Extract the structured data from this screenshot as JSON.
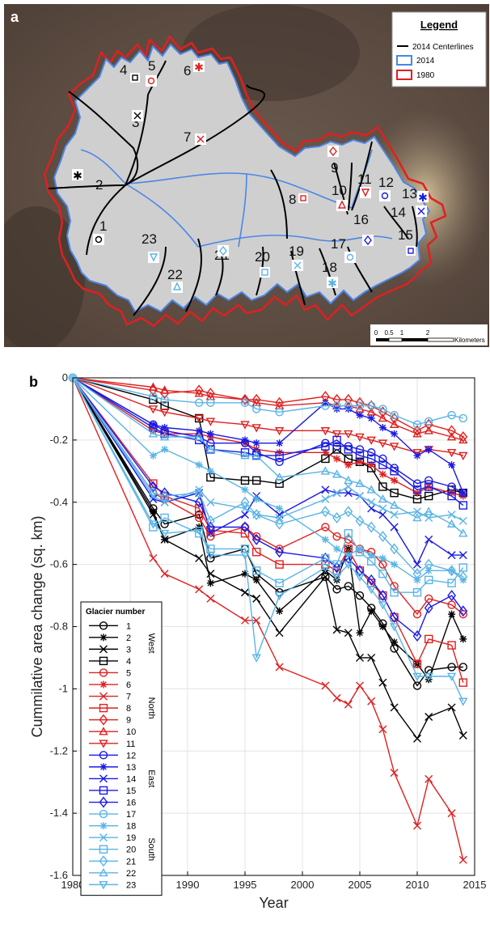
{
  "panel_a": {
    "label": "a",
    "legend": {
      "title": "Legend",
      "items": [
        {
          "label": "2014 Centerlines",
          "color": "#000000"
        },
        {
          "label": "2014",
          "color": "#4a86e8"
        },
        {
          "label": "1980",
          "color": "#e02020"
        }
      ]
    },
    "scale": {
      "ticks": [
        "0",
        "0.5",
        "1",
        "2"
      ],
      "unit": "Kilometers"
    },
    "glacier_labels": [
      "1",
      "2",
      "3",
      "4",
      "5",
      "6",
      "7",
      "8",
      "9",
      "10",
      "11",
      "12",
      "13",
      "14",
      "15",
      "16",
      "17",
      "18",
      "19",
      "20",
      "21",
      "22",
      "23"
    ]
  },
  "chart_data": {
    "type": "line",
    "panel_label": "b",
    "xlabel": "Year",
    "ylabel": "Cummilative area change (sq. km)",
    "xlim": [
      1980,
      2015
    ],
    "ylim": [
      -1.6,
      0
    ],
    "xticks": [
      1980,
      1985,
      1990,
      1995,
      2000,
      2005,
      2010,
      2015
    ],
    "yticks": [
      0,
      -0.2,
      -0.4,
      -0.6,
      -0.8,
      -1,
      -1.2,
      -1.4,
      -1.6
    ],
    "grid": true,
    "legend": {
      "title": "Glacier number",
      "placement": "bottom-left",
      "group_labels": [
        {
          "label": "West",
          "start": 1,
          "end": 4
        },
        {
          "label": "North",
          "start": 5,
          "end": 11
        },
        {
          "label": "East",
          "start": 12,
          "end": 16
        },
        {
          "label": "South",
          "start": 17,
          "end": 23
        }
      ]
    },
    "x": [
      1980,
      1987,
      1988,
      1991,
      1992,
      1995,
      1996,
      1998,
      2002,
      2003,
      2004,
      2005,
      2006,
      2007,
      2008,
      2010,
      2011,
      2013,
      2014
    ],
    "series": [
      {
        "name": "1",
        "color": "#000000",
        "marker": "circle",
        "values": [
          0,
          -0.42,
          -0.47,
          -0.44,
          -0.58,
          -0.55,
          -0.63,
          -0.69,
          -0.64,
          -0.68,
          -0.67,
          -0.7,
          -0.74,
          -0.79,
          -0.87,
          -0.99,
          -0.94,
          -0.93,
          -0.93
        ]
      },
      {
        "name": "2",
        "color": "#000000",
        "marker": "asterisk",
        "values": [
          0,
          -0.43,
          -0.52,
          -0.48,
          -0.66,
          -0.63,
          -0.65,
          -0.75,
          -0.62,
          -0.65,
          -0.55,
          -0.82,
          -0.75,
          -0.8,
          -0.85,
          -0.92,
          -0.97,
          -0.76,
          -0.84
        ]
      },
      {
        "name": "3",
        "color": "#000000",
        "marker": "x",
        "values": [
          0,
          -0.44,
          -0.52,
          -0.58,
          -0.63,
          -0.69,
          -0.71,
          -0.82,
          -0.64,
          -0.81,
          -0.82,
          -0.9,
          -0.9,
          -0.98,
          -1.06,
          -1.16,
          -1.09,
          -1.06,
          -1.15
        ]
      },
      {
        "name": "4",
        "color": "#000000",
        "marker": "square",
        "values": [
          0,
          -0.07,
          -0.09,
          -0.13,
          -0.32,
          -0.33,
          -0.33,
          -0.34,
          -0.26,
          -0.23,
          -0.26,
          -0.27,
          -0.29,
          -0.35,
          -0.37,
          -0.39,
          -0.38,
          -0.36,
          -0.37
        ]
      },
      {
        "name": "5",
        "color": "#e02020",
        "marker": "circle",
        "values": [
          0,
          -0.37,
          -0.39,
          -0.45,
          -0.51,
          -0.48,
          -0.51,
          -0.55,
          -0.48,
          -0.51,
          -0.52,
          -0.55,
          -0.56,
          -0.6,
          -0.67,
          -0.76,
          -0.71,
          -0.73,
          -0.76
        ]
      },
      {
        "name": "6",
        "color": "#e02020",
        "marker": "asterisk",
        "values": [
          0,
          -0.17,
          -0.18,
          -0.18,
          -0.19,
          -0.21,
          -0.23,
          -0.24,
          -0.24,
          -0.26,
          -0.28,
          -0.27,
          -0.28,
          -0.31,
          -0.33,
          -0.37,
          -0.35,
          -0.37,
          -0.38
        ]
      },
      {
        "name": "7",
        "color": "#e02020",
        "marker": "x",
        "values": [
          0,
          -0.58,
          -0.63,
          -0.68,
          -0.71,
          -0.78,
          -0.78,
          -0.93,
          -0.99,
          -1.03,
          -1.05,
          -0.99,
          -1.04,
          -1.13,
          -1.27,
          -1.44,
          -1.29,
          -1.4,
          -1.55
        ]
      },
      {
        "name": "8",
        "color": "#e02020",
        "marker": "square",
        "values": [
          0,
          -0.34,
          -0.38,
          -0.42,
          -0.49,
          -0.5,
          -0.56,
          -0.6,
          -0.6,
          -0.62,
          -0.55,
          -0.62,
          -0.66,
          -0.7,
          -0.77,
          -0.92,
          -0.84,
          -0.86,
          -0.98
        ]
      },
      {
        "name": "9",
        "color": "#e02020",
        "marker": "diamond",
        "values": [
          0,
          -0.04,
          -0.05,
          -0.04,
          -0.05,
          -0.07,
          -0.07,
          -0.08,
          -0.06,
          -0.07,
          -0.07,
          -0.08,
          -0.09,
          -0.11,
          -0.13,
          -0.17,
          -0.15,
          -0.17,
          -0.19
        ]
      },
      {
        "name": "10",
        "color": "#e02020",
        "marker": "triangle-up",
        "values": [
          0,
          -0.03,
          -0.04,
          -0.05,
          -0.06,
          -0.07,
          -0.08,
          -0.09,
          -0.08,
          -0.09,
          -0.09,
          -0.1,
          -0.11,
          -0.13,
          -0.15,
          -0.18,
          -0.17,
          -0.19,
          -0.2
        ]
      },
      {
        "name": "11",
        "color": "#e02020",
        "marker": "triangle-down",
        "values": [
          0,
          -0.1,
          -0.11,
          -0.13,
          -0.14,
          -0.15,
          -0.16,
          -0.17,
          -0.17,
          -0.18,
          -0.18,
          -0.19,
          -0.2,
          -0.21,
          -0.22,
          -0.24,
          -0.23,
          -0.24,
          -0.25
        ]
      },
      {
        "name": "12",
        "color": "#1a1ae6",
        "marker": "circle",
        "values": [
          0,
          -0.15,
          -0.17,
          -0.19,
          -0.21,
          -0.21,
          -0.24,
          -0.27,
          -0.21,
          -0.22,
          -0.22,
          -0.23,
          -0.24,
          -0.26,
          -0.29,
          -0.34,
          -0.33,
          -0.35,
          -0.37
        ]
      },
      {
        "name": "13",
        "color": "#1a1ae6",
        "marker": "asterisk",
        "values": [
          0,
          -0.15,
          -0.16,
          -0.17,
          -0.18,
          -0.2,
          -0.21,
          -0.21,
          -0.08,
          -0.1,
          -0.1,
          -0.12,
          -0.13,
          -0.16,
          -0.18,
          -0.25,
          -0.23,
          -0.28,
          -0.37
        ]
      },
      {
        "name": "14",
        "color": "#1a1ae6",
        "marker": "x",
        "values": [
          0,
          -0.39,
          -0.4,
          -0.37,
          -0.5,
          -0.44,
          -0.38,
          -0.44,
          -0.36,
          -0.37,
          -0.37,
          -0.38,
          -0.42,
          -0.44,
          -0.48,
          -0.6,
          -0.52,
          -0.57,
          -0.57
        ]
      },
      {
        "name": "15",
        "color": "#1a1ae6",
        "marker": "square",
        "values": [
          0,
          -0.16,
          -0.18,
          -0.2,
          -0.23,
          -0.24,
          -0.25,
          -0.25,
          -0.22,
          -0.2,
          -0.23,
          -0.25,
          -0.26,
          -0.28,
          -0.3,
          -0.36,
          -0.35,
          -0.38,
          -0.41
        ]
      },
      {
        "name": "16",
        "color": "#1a1ae6",
        "marker": "diamond",
        "values": [
          0,
          -0.35,
          -0.37,
          -0.4,
          -0.48,
          -0.48,
          -0.52,
          -0.56,
          -0.58,
          -0.61,
          -0.58,
          -0.62,
          -0.65,
          -0.7,
          -0.77,
          -0.83,
          -0.74,
          -0.7,
          -0.75
        ]
      },
      {
        "name": "17",
        "color": "#5ab4e6",
        "marker": "circle",
        "values": [
          0,
          -0.06,
          -0.07,
          -0.08,
          -0.08,
          -0.08,
          -0.1,
          -0.11,
          -0.09,
          -0.09,
          -0.09,
          -0.09,
          -0.09,
          -0.1,
          -0.12,
          -0.15,
          -0.14,
          -0.12,
          -0.13
        ]
      },
      {
        "name": "18",
        "color": "#5ab4e6",
        "marker": "asterisk",
        "values": [
          0,
          -0.25,
          -0.23,
          -0.28,
          -0.3,
          -0.36,
          -0.39,
          -0.42,
          -0.52,
          -0.55,
          -0.57,
          -0.55,
          -0.57,
          -0.58,
          -0.6,
          -0.65,
          -0.62,
          -0.62,
          -0.65
        ]
      },
      {
        "name": "19",
        "color": "#5ab4e6",
        "marker": "x",
        "values": [
          0,
          -0.38,
          -0.4,
          -0.36,
          -0.4,
          -0.42,
          -0.44,
          -0.45,
          -0.39,
          -0.37,
          -0.35,
          -0.38,
          -0.4,
          -0.42,
          -0.44,
          -0.43,
          -0.45,
          -0.44,
          -0.46
        ]
      },
      {
        "name": "20",
        "color": "#5ab4e6",
        "marker": "square",
        "values": [
          0,
          -0.48,
          -0.45,
          -0.5,
          -0.55,
          -0.55,
          -0.62,
          -0.66,
          -0.58,
          -0.6,
          -0.5,
          -0.56,
          -0.59,
          -0.63,
          -0.69,
          -0.69,
          -0.65,
          -0.66,
          -0.61
        ]
      },
      {
        "name": "21",
        "color": "#5ab4e6",
        "marker": "diamond",
        "values": [
          0,
          -0.37,
          -0.38,
          -0.37,
          -0.46,
          -0.4,
          -0.44,
          -0.47,
          -0.43,
          -0.45,
          -0.43,
          -0.46,
          -0.48,
          -0.51,
          -0.55,
          -0.63,
          -0.6,
          -0.62,
          -0.64
        ]
      },
      {
        "name": "22",
        "color": "#5ab4e6",
        "marker": "triangle-up",
        "values": [
          0,
          -0.18,
          -0.19,
          -0.19,
          -0.23,
          -0.25,
          -0.25,
          -0.32,
          -0.3,
          -0.31,
          -0.33,
          -0.34,
          -0.36,
          -0.39,
          -0.41,
          -0.45,
          -0.43,
          -0.47,
          -0.5
        ]
      },
      {
        "name": "23",
        "color": "#5ab4e6",
        "marker": "triangle-down",
        "values": [
          0,
          -0.47,
          -0.5,
          -0.49,
          -0.57,
          -0.57,
          -0.9,
          -0.7,
          -0.61,
          -0.64,
          -0.6,
          -0.64,
          -0.68,
          -0.73,
          -0.8,
          -0.96,
          -0.96,
          -0.96,
          -1.04
        ]
      }
    ]
  }
}
